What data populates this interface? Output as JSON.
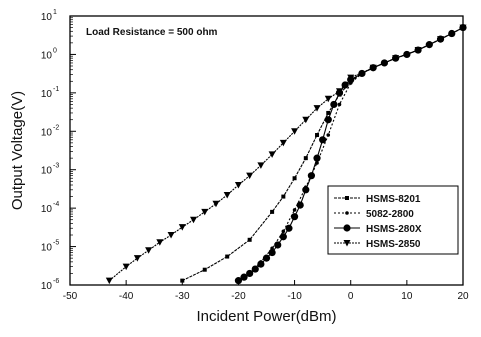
{
  "chart_data": {
    "type": "line",
    "title": "",
    "xlabel": "Incident Power(dBm)",
    "ylabel": "Output Voltage(V)",
    "annotation": "Load Resistance = 500 ohm",
    "xlim": [
      -50,
      20
    ],
    "ylim": [
      1e-06,
      10
    ],
    "y_scale": "log",
    "x_ticks": [
      -50,
      -40,
      -30,
      -20,
      -10,
      0,
      10,
      20
    ],
    "x_tick_labels": [
      "-50",
      "-40",
      "-30",
      "-20",
      "-10",
      "0",
      "10",
      "20"
    ],
    "y_ticks": [
      {
        "value": 1e-06,
        "mantissa": "10",
        "exp": "-6"
      },
      {
        "value": 1e-05,
        "mantissa": "10",
        "exp": "-5"
      },
      {
        "value": 0.0001,
        "mantissa": "10",
        "exp": "-4"
      },
      {
        "value": 0.001,
        "mantissa": "10",
        "exp": "-3"
      },
      {
        "value": 0.01,
        "mantissa": "10",
        "exp": "-2"
      },
      {
        "value": 0.1,
        "mantissa": "10",
        "exp": "-1"
      },
      {
        "value": 1,
        "mantissa": "10",
        "exp": "0"
      },
      {
        "value": 10,
        "mantissa": "10",
        "exp": "1"
      }
    ],
    "grid": false,
    "legend_position": "bottom-right",
    "series": [
      {
        "name": "HSMS-8201",
        "marker": "square",
        "x": [
          -30,
          -26,
          -22,
          -18,
          -14,
          -12,
          -10,
          -8,
          -6,
          -4,
          -2,
          0,
          2,
          4,
          6,
          8,
          10,
          12,
          14,
          16,
          18,
          20
        ],
        "y": [
          1.3e-06,
          2.5e-06,
          5.5e-06,
          1.5e-05,
          8e-05,
          0.0002,
          0.0006,
          0.002,
          0.008,
          0.03,
          0.09,
          0.2,
          0.32,
          0.45,
          0.6,
          0.8,
          1.0,
          1.3,
          1.8,
          2.5,
          3.5,
          5.0
        ]
      },
      {
        "name": "5082-2800",
        "marker": "dot",
        "x": [
          -20,
          -18,
          -16,
          -14,
          -12,
          -10,
          -8,
          -6,
          -4,
          -2,
          0,
          2,
          4,
          6,
          8,
          10,
          12,
          14,
          16,
          18,
          20
        ],
        "y": [
          1.3e-06,
          2e-06,
          4e-06,
          9e-06,
          2.5e-05,
          9e-05,
          0.00035,
          0.0015,
          0.008,
          0.05,
          0.18,
          0.32,
          0.45,
          0.6,
          0.8,
          1.0,
          1.3,
          1.8,
          2.5,
          3.5,
          5.0
        ]
      },
      {
        "name": "HSMS-280X",
        "marker": "circle",
        "x": [
          -20,
          -19,
          -18,
          -17,
          -16,
          -15,
          -14,
          -13,
          -12,
          -11,
          -10,
          -9,
          -8,
          -7,
          -6,
          -5,
          -4,
          -3,
          -2,
          -1,
          0,
          2,
          4,
          6,
          8,
          10,
          12,
          14,
          16,
          18,
          20
        ],
        "y": [
          1.3e-06,
          1.6e-06,
          2e-06,
          2.6e-06,
          3.5e-06,
          5e-06,
          7e-06,
          1.1e-05,
          1.8e-05,
          3e-05,
          6e-05,
          0.00012,
          0.0003,
          0.0007,
          0.002,
          0.006,
          0.02,
          0.05,
          0.1,
          0.16,
          0.22,
          0.32,
          0.45,
          0.6,
          0.8,
          1.0,
          1.3,
          1.8,
          2.5,
          3.5,
          5.0
        ]
      },
      {
        "name": "HSMS-2850",
        "marker": "triangle-down",
        "x": [
          -43,
          -40,
          -38,
          -36,
          -34,
          -32,
          -30,
          -28,
          -26,
          -24,
          -22,
          -20,
          -18,
          -16,
          -14,
          -12,
          -10,
          -8,
          -6,
          -4,
          -2,
          0,
          4,
          8,
          12,
          16,
          20
        ],
        "y": [
          1.3e-06,
          3e-06,
          5e-06,
          8e-06,
          1.3e-05,
          2e-05,
          3.2e-05,
          5e-05,
          8e-05,
          0.00013,
          0.00022,
          0.0004,
          0.0007,
          0.0013,
          0.0025,
          0.005,
          0.01,
          0.02,
          0.04,
          0.07,
          0.11,
          0.25,
          0.45,
          0.8,
          1.3,
          2.5,
          5.0
        ]
      }
    ]
  }
}
